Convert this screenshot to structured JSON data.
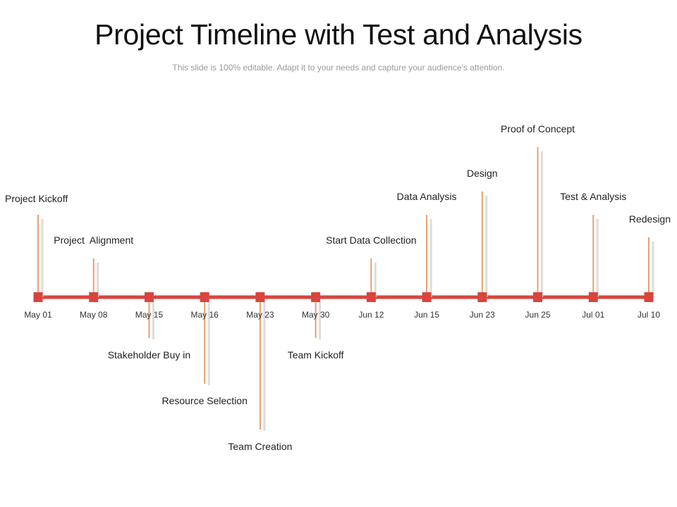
{
  "title": "Project Timeline with Test and Analysis",
  "subtitle": "This slide is 100% editable. Adapt it to your needs and capture your audience's attention.",
  "colors": {
    "line": "#d9443d",
    "marker": "#d9443d",
    "stem": "#e9a06a",
    "stem_shadow": "#dcdcdc",
    "label": "#222222",
    "date": "#333333"
  },
  "milestones": [
    {
      "date": "May 01",
      "label": "Project Kickoff",
      "side": "above",
      "level": 4
    },
    {
      "date": "May 08",
      "label": "Project  Alignment",
      "side": "above",
      "level": 2
    },
    {
      "date": "May 15",
      "label": "Stakeholder Buy in",
      "side": "below",
      "level": 1
    },
    {
      "date": "May 16",
      "label": "Resource Selection",
      "side": "below",
      "level": 2
    },
    {
      "date": "May 23",
      "label": "Team Creation",
      "side": "below",
      "level": 3
    },
    {
      "date": "May 30",
      "label": "Team Kickoff",
      "side": "below",
      "level": 1
    },
    {
      "date": "Jun 12",
      "label": "Start Data Collection",
      "side": "above",
      "level": 2
    },
    {
      "date": "Jun 15",
      "label": "Data Analysis",
      "side": "above",
      "level": 4
    },
    {
      "date": "Jun 23",
      "label": "Design",
      "side": "above",
      "level": 5
    },
    {
      "date": "Jun 25",
      "label": "Proof of Concept",
      "side": "above",
      "level": 7
    },
    {
      "date": "Jul 01",
      "label": "Test & Analysis",
      "side": "above",
      "level": 4
    },
    {
      "date": "Jul 10",
      "label": "Redesign",
      "side": "above",
      "level": 3
    }
  ]
}
